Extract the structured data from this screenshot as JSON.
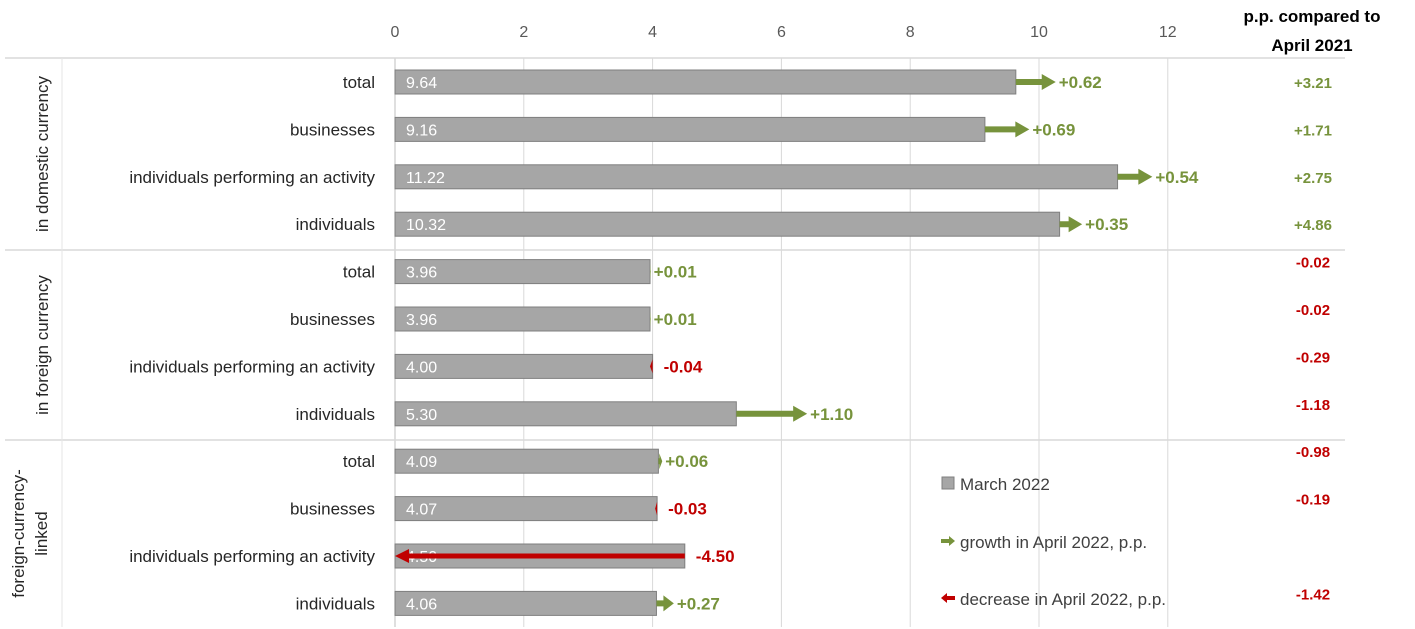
{
  "chart_data": {
    "type": "bar",
    "orientation": "horizontal",
    "xlim": [
      0,
      12
    ],
    "x_ticks": [
      "0",
      "2",
      "4",
      "6",
      "8",
      "10",
      "12"
    ],
    "grid": "vertical",
    "legend_position": "bottom-right",
    "yoy_header": [
      "p.p. compared to",
      "April 2021"
    ],
    "legend": {
      "bar": "March 2022",
      "growth": "growth in April 2022, p.p.",
      "decrease": "decrease in April 2022, p.p."
    },
    "colors": {
      "bar": "#a6a6a6",
      "bar_border": "#7f7f7f",
      "growth": "#77933c",
      "decrease": "#c00000",
      "grid": "#d9d9d9"
    },
    "groups": [
      {
        "name": "in domestic currency",
        "rows": [
          {
            "category": "total",
            "value": 9.64,
            "value_label": "9.64",
            "change": 0.62,
            "change_label": "+0.62",
            "yoy": "+3.21"
          },
          {
            "category": "businesses",
            "value": 9.16,
            "value_label": "9.16",
            "change": 0.69,
            "change_label": "+0.69",
            "yoy": "+1.71"
          },
          {
            "category": "individuals performing an activity",
            "value": 11.22,
            "value_label": "11.22",
            "change": 0.54,
            "change_label": "+0.54",
            "yoy": "+2.75"
          },
          {
            "category": "individuals",
            "value": 10.32,
            "value_label": "10.32",
            "change": 0.35,
            "change_label": "+0.35",
            "yoy": "+4.86"
          }
        ]
      },
      {
        "name": "in foreign currency",
        "rows": [
          {
            "category": "total",
            "value": 3.96,
            "value_label": "3.96",
            "change": 0.01,
            "change_label": "+0.01",
            "yoy": "-0.02"
          },
          {
            "category": "businesses",
            "value": 3.96,
            "value_label": "3.96",
            "change": 0.01,
            "change_label": "+0.01",
            "yoy": "-0.02"
          },
          {
            "category": "individuals performing an activity",
            "value": 4.0,
            "value_label": "4.00",
            "change": -0.04,
            "change_label": "-0.04",
            "yoy": "-0.29"
          },
          {
            "category": "individuals",
            "value": 5.3,
            "value_label": "5.30",
            "change": 1.1,
            "change_label": "+1.10",
            "yoy": "-1.18"
          }
        ]
      },
      {
        "name": "foreign-currency-linked",
        "name_lines": [
          "foreign-currency-",
          "linked"
        ],
        "rows": [
          {
            "category": "total",
            "value": 4.09,
            "value_label": "4.09",
            "change": 0.06,
            "change_label": "+0.06",
            "yoy": "-0.98"
          },
          {
            "category": "businesses",
            "value": 4.07,
            "value_label": "4.07",
            "change": -0.03,
            "change_label": "-0.03",
            "yoy": "-0.19"
          },
          {
            "category": "individuals performing an activity",
            "value": 4.5,
            "value_label": "4.50",
            "change": -4.5,
            "change_label": "-4.50",
            "yoy": ""
          },
          {
            "category": "individuals",
            "value": 4.06,
            "value_label": "4.06",
            "change": 0.27,
            "change_label": "+0.27",
            "yoy": "-1.42"
          }
        ]
      }
    ]
  }
}
